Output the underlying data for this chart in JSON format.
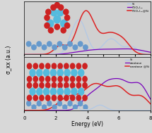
{
  "xlabel": "Energy (eV)",
  "ylabel": "σ_xx (a.u.)",
  "background_color": "#d8d8d8",
  "plot_bg": "#d0d0d0",
  "xlim": [
    0,
    8
  ],
  "top_panel": {
    "legend": [
      "Si",
      "(TiO₂)₁₅",
      "(TiO₂)₁₅@Si"
    ],
    "colors": [
      "#b0c8e8",
      "#7700bb",
      "#dd2222"
    ],
    "linewidths": [
      0.9,
      0.9,
      1.1
    ]
  },
  "bottom_panel": {
    "legend": [
      "Si",
      "anatase",
      "anatase @Si"
    ],
    "colors": [
      "#b0c8e8",
      "#7700bb",
      "#dd2222"
    ],
    "linewidths": [
      0.9,
      0.9,
      1.1
    ]
  },
  "si_color": "#6699cc",
  "ti_color": "#55bbdd",
  "o_color": "#cc2222"
}
